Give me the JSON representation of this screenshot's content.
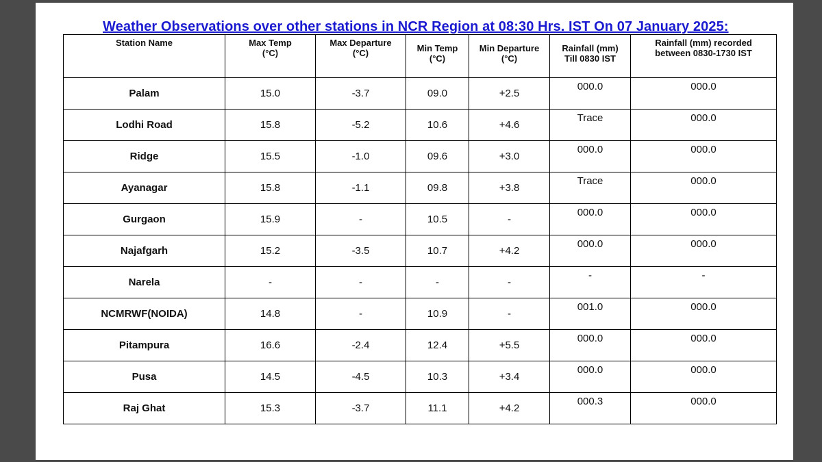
{
  "title": "Weather Observations over other stations in NCR Region at 08:30 Hrs. IST On 07 January 2025:",
  "headers": {
    "station": "Station Name",
    "max_temp": [
      "Max Temp",
      "(°C)"
    ],
    "max_dep": [
      "Max Departure",
      "(°C)"
    ],
    "min_temp": [
      "Min Temp",
      "(°C)"
    ],
    "min_dep": [
      "Min Departure",
      "(°C)"
    ],
    "rain_till": [
      "Rainfall (mm)",
      "Till 0830 IST"
    ],
    "rain_between": [
      "Rainfall (mm) recorded",
      "between 0830-1730 IST"
    ]
  },
  "rows": [
    {
      "station": "Palam",
      "max_temp": "15.0",
      "max_dep": "-3.7",
      "min_temp": "09.0",
      "min_dep": "+2.5",
      "rain_till": "000.0",
      "rain_between": "000.0"
    },
    {
      "station": "Lodhi Road",
      "max_temp": "15.8",
      "max_dep": "-5.2",
      "min_temp": "10.6",
      "min_dep": "+4.6",
      "rain_till": "Trace",
      "rain_between": "000.0"
    },
    {
      "station": "Ridge",
      "max_temp": "15.5",
      "max_dep": "-1.0",
      "min_temp": "09.6",
      "min_dep": "+3.0",
      "rain_till": "000.0",
      "rain_between": "000.0"
    },
    {
      "station": "Ayanagar",
      "max_temp": "15.8",
      "max_dep": "-1.1",
      "min_temp": "09.8",
      "min_dep": "+3.8",
      "rain_till": "Trace",
      "rain_between": "000.0"
    },
    {
      "station": "Gurgaon",
      "max_temp": "15.9",
      "max_dep": "-",
      "min_temp": "10.5",
      "min_dep": "-",
      "rain_till": "000.0",
      "rain_between": "000.0"
    },
    {
      "station": "Najafgarh",
      "max_temp": "15.2",
      "max_dep": "-3.5",
      "min_temp": "10.7",
      "min_dep": "+4.2",
      "rain_till": "000.0",
      "rain_between": "000.0"
    },
    {
      "station": "Narela",
      "max_temp": "-",
      "max_dep": "-",
      "min_temp": "-",
      "min_dep": "-",
      "rain_till": "-",
      "rain_between": "-"
    },
    {
      "station": "NCMRWF(NOIDA)",
      "max_temp": "14.8",
      "max_dep": "-",
      "min_temp": "10.9",
      "min_dep": "-",
      "rain_till": "001.0",
      "rain_between": "000.0"
    },
    {
      "station": "Pitampura",
      "max_temp": "16.6",
      "max_dep": "-2.4",
      "min_temp": "12.4",
      "min_dep": "+5.5",
      "rain_till": "000.0",
      "rain_between": "000.0"
    },
    {
      "station": "Pusa",
      "max_temp": "14.5",
      "max_dep": "-4.5",
      "min_temp": "10.3",
      "min_dep": "+3.4",
      "rain_till": "000.0",
      "rain_between": "000.0"
    },
    {
      "station": "Raj Ghat",
      "max_temp": "15.3",
      "max_dep": "-3.7",
      "min_temp": "11.1",
      "min_dep": "+4.2",
      "rain_till": "000.3",
      "rain_between": "000.0"
    }
  ]
}
